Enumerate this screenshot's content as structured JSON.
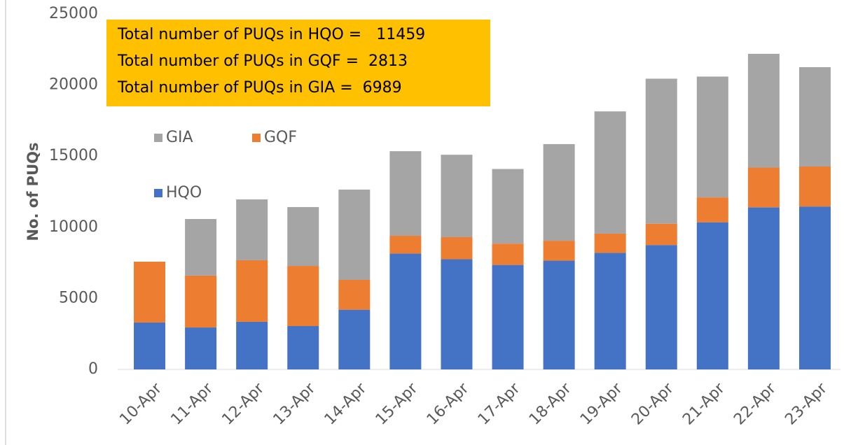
{
  "chart_data": {
    "type": "stacked_bar",
    "y_label": "No. of PUQs",
    "annotations": [
      "Total number of PUQs in HQO =   11459",
      "Total number of PUQs in GQF =  2813",
      "Total number of PUQs in GIA =  6989"
    ],
    "categories": [
      "10-Apr",
      "11-Apr",
      "12-Apr",
      "13-Apr",
      "14-Apr",
      "15-Apr",
      "16-Apr",
      "17-Apr",
      "18-Apr",
      "19-Apr",
      "20-Apr",
      "21-Apr",
      "22-Apr",
      "23-Apr"
    ],
    "series": [
      {
        "name": "HQO",
        "color": "#4472c4",
        "values": [
          3300,
          2950,
          3350,
          3050,
          4200,
          8150,
          7750,
          7350,
          7650,
          8200,
          8750,
          10350,
          11400,
          11459
        ]
      },
      {
        "name": "GQF",
        "color": "#ed7d31",
        "values": [
          4280,
          3650,
          4330,
          4230,
          2100,
          1250,
          1550,
          1500,
          1400,
          1350,
          1500,
          1750,
          2800,
          2813
        ]
      },
      {
        "name": "GIA",
        "color": "#a5a5a5",
        "values": [
          0,
          3980,
          4280,
          4140,
          6350,
          5950,
          5800,
          5250,
          6800,
          8600,
          10200,
          8500,
          8000,
          6989
        ]
      }
    ],
    "ylim": [
      0,
      25000
    ],
    "yticks": [
      0,
      5000,
      10000,
      15000,
      20000,
      25000
    ],
    "grid": false,
    "annotation_color": "#ffc000"
  }
}
